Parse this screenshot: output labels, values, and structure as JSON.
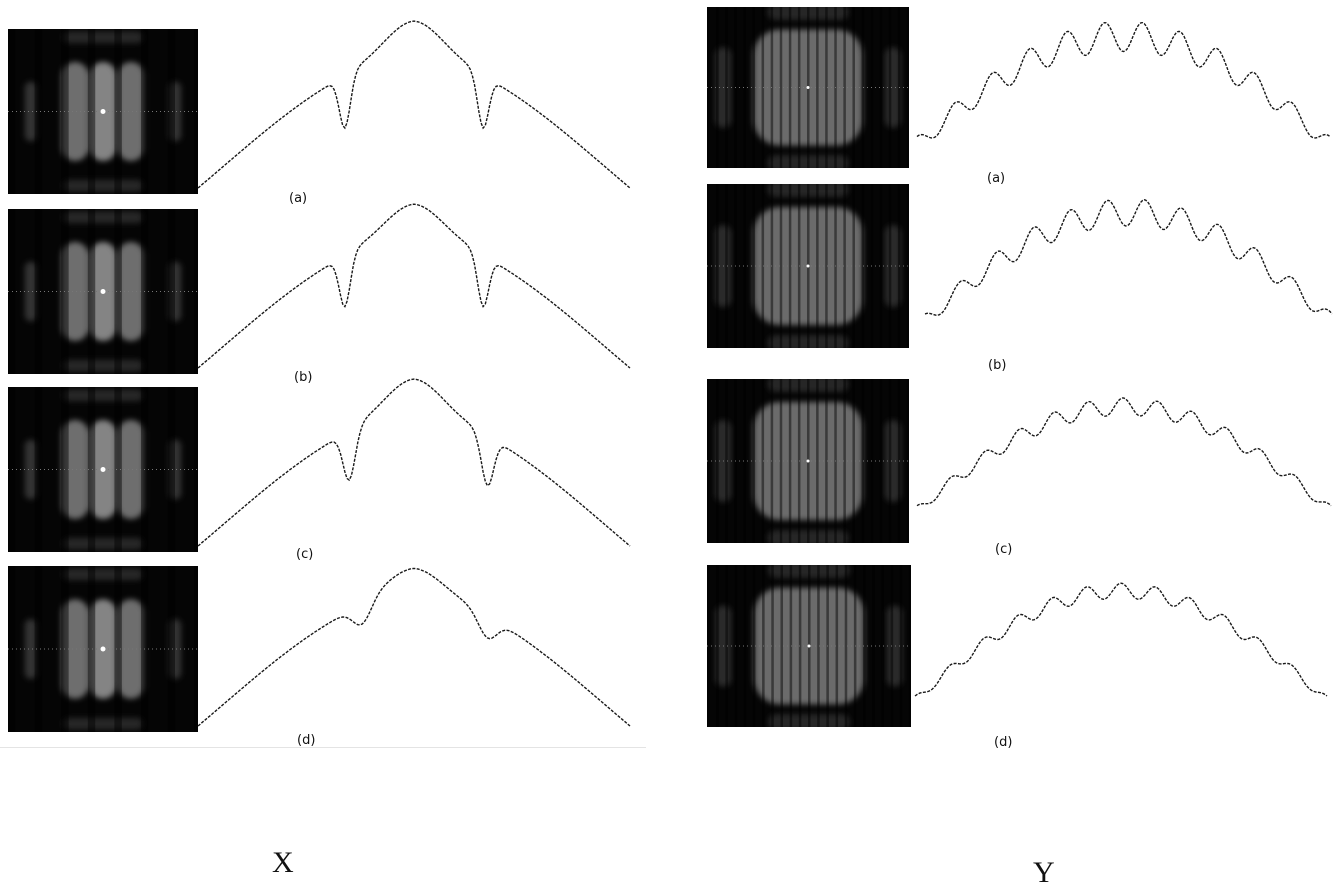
{
  "figure": {
    "group_x": {
      "label": "X",
      "rows": [
        {
          "label": "(a)",
          "profile_shape": "x_a"
        },
        {
          "label": "(b)",
          "profile_shape": "x_b"
        },
        {
          "label": "(c)",
          "profile_shape": "x_c"
        },
        {
          "label": "(d)",
          "profile_shape": "x_d"
        }
      ]
    },
    "group_y": {
      "label": "Y",
      "rows": [
        {
          "label": "(a)",
          "profile_shape": "y_a"
        },
        {
          "label": "(b)",
          "profile_shape": "y_b"
        },
        {
          "label": "(c)",
          "profile_shape": "y_c"
        },
        {
          "label": "(d)",
          "profile_shape": "y_d"
        }
      ]
    }
  }
}
